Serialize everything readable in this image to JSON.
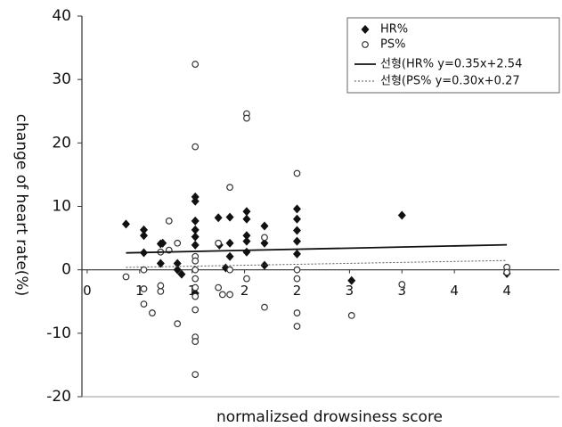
{
  "chart_data": {
    "type": "scatter",
    "x_label": "normalizsed drowsiness score",
    "y_label": "change of heart rate(%)",
    "xlim": [
      -0.05,
      4.5
    ],
    "ylim": [
      -20,
      40
    ],
    "xticks": [
      0,
      {
        "value": 0.5,
        "label": "1"
      },
      1,
      {
        "value": 1.5,
        "label": "2"
      },
      2,
      {
        "value": 2.5,
        "label": "3"
      },
      3,
      {
        "value": 3.5,
        "label": "4"
      },
      4
    ],
    "yticks": [
      -20,
      -10,
      0,
      10,
      20,
      30,
      40
    ],
    "series": [
      {
        "name": "HR%",
        "color": "#111111",
        "marker": "diamond",
        "x": [
          0.37,
          0.54,
          0.54,
          0.54,
          0.7,
          0.7,
          0.72,
          0.86,
          0.86,
          0.9,
          1.03,
          1.03,
          1.03,
          1.03,
          1.03,
          1.03,
          1.03,
          1.25,
          1.26,
          1.36,
          1.36,
          1.36,
          1.32,
          1.52,
          1.52,
          1.52,
          1.52,
          1.52,
          1.69,
          1.69,
          1.69,
          2.0,
          2.0,
          2.0,
          2.0,
          2.0,
          2.52,
          3.0,
          4.0
        ],
        "values": [
          7.2,
          6.3,
          5.4,
          2.7,
          4.1,
          1.0,
          4.2,
          1.0,
          0.0,
          -0.7,
          11.5,
          10.8,
          7.7,
          6.3,
          5.2,
          3.9,
          -3.7,
          8.2,
          3.9,
          8.3,
          4.2,
          2.1,
          0.3,
          9.2,
          8.0,
          5.4,
          4.5,
          2.8,
          6.9,
          4.2,
          0.7,
          9.6,
          8.0,
          6.2,
          4.5,
          2.5,
          -1.7,
          8.6,
          -0.6
        ]
      },
      {
        "name": "PS%",
        "color": "#333333",
        "marker": "circle",
        "x": [
          0.37,
          0.54,
          0.54,
          0.54,
          0.62,
          0.7,
          0.7,
          0.7,
          0.78,
          0.78,
          0.86,
          0.86,
          1.03,
          1.03,
          1.03,
          1.03,
          1.03,
          1.03,
          1.03,
          1.03,
          1.03,
          1.03,
          1.03,
          1.03,
          1.25,
          1.25,
          1.29,
          1.36,
          1.36,
          1.36,
          1.52,
          1.52,
          1.52,
          1.69,
          1.69,
          2.0,
          2.0,
          2.0,
          2.0,
          2.0,
          2.52,
          3.0,
          4.0,
          4.0
        ],
        "values": [
          -1.1,
          -5.4,
          -3.0,
          0.0,
          -6.8,
          -3.4,
          -2.5,
          2.8,
          7.7,
          3.1,
          4.2,
          -8.5,
          32.4,
          19.4,
          2.1,
          1.4,
          0.0,
          -1.4,
          -2.8,
          -4.2,
          -6.3,
          -10.6,
          -11.3,
          -16.5,
          4.2,
          -2.8,
          -3.9,
          13.0,
          0.0,
          -3.9,
          24.6,
          23.9,
          -1.4,
          5.1,
          -5.9,
          15.2,
          0.0,
          -1.4,
          -6.8,
          -8.9,
          -7.2,
          -2.3,
          0.4,
          -0.4
        ]
      },
      {
        "name": "선형(HR% y=0.35x+2.54",
        "color": "#111111",
        "marker": "line",
        "x": [
          0.37,
          4.0
        ],
        "values": [
          2.67,
          3.94
        ]
      },
      {
        "name": "선형(PS% y=0.30x+0.27",
        "color": "#555555",
        "marker": "dotted",
        "x": [
          0.37,
          4.0
        ],
        "values": [
          0.38,
          1.47
        ]
      }
    ]
  }
}
